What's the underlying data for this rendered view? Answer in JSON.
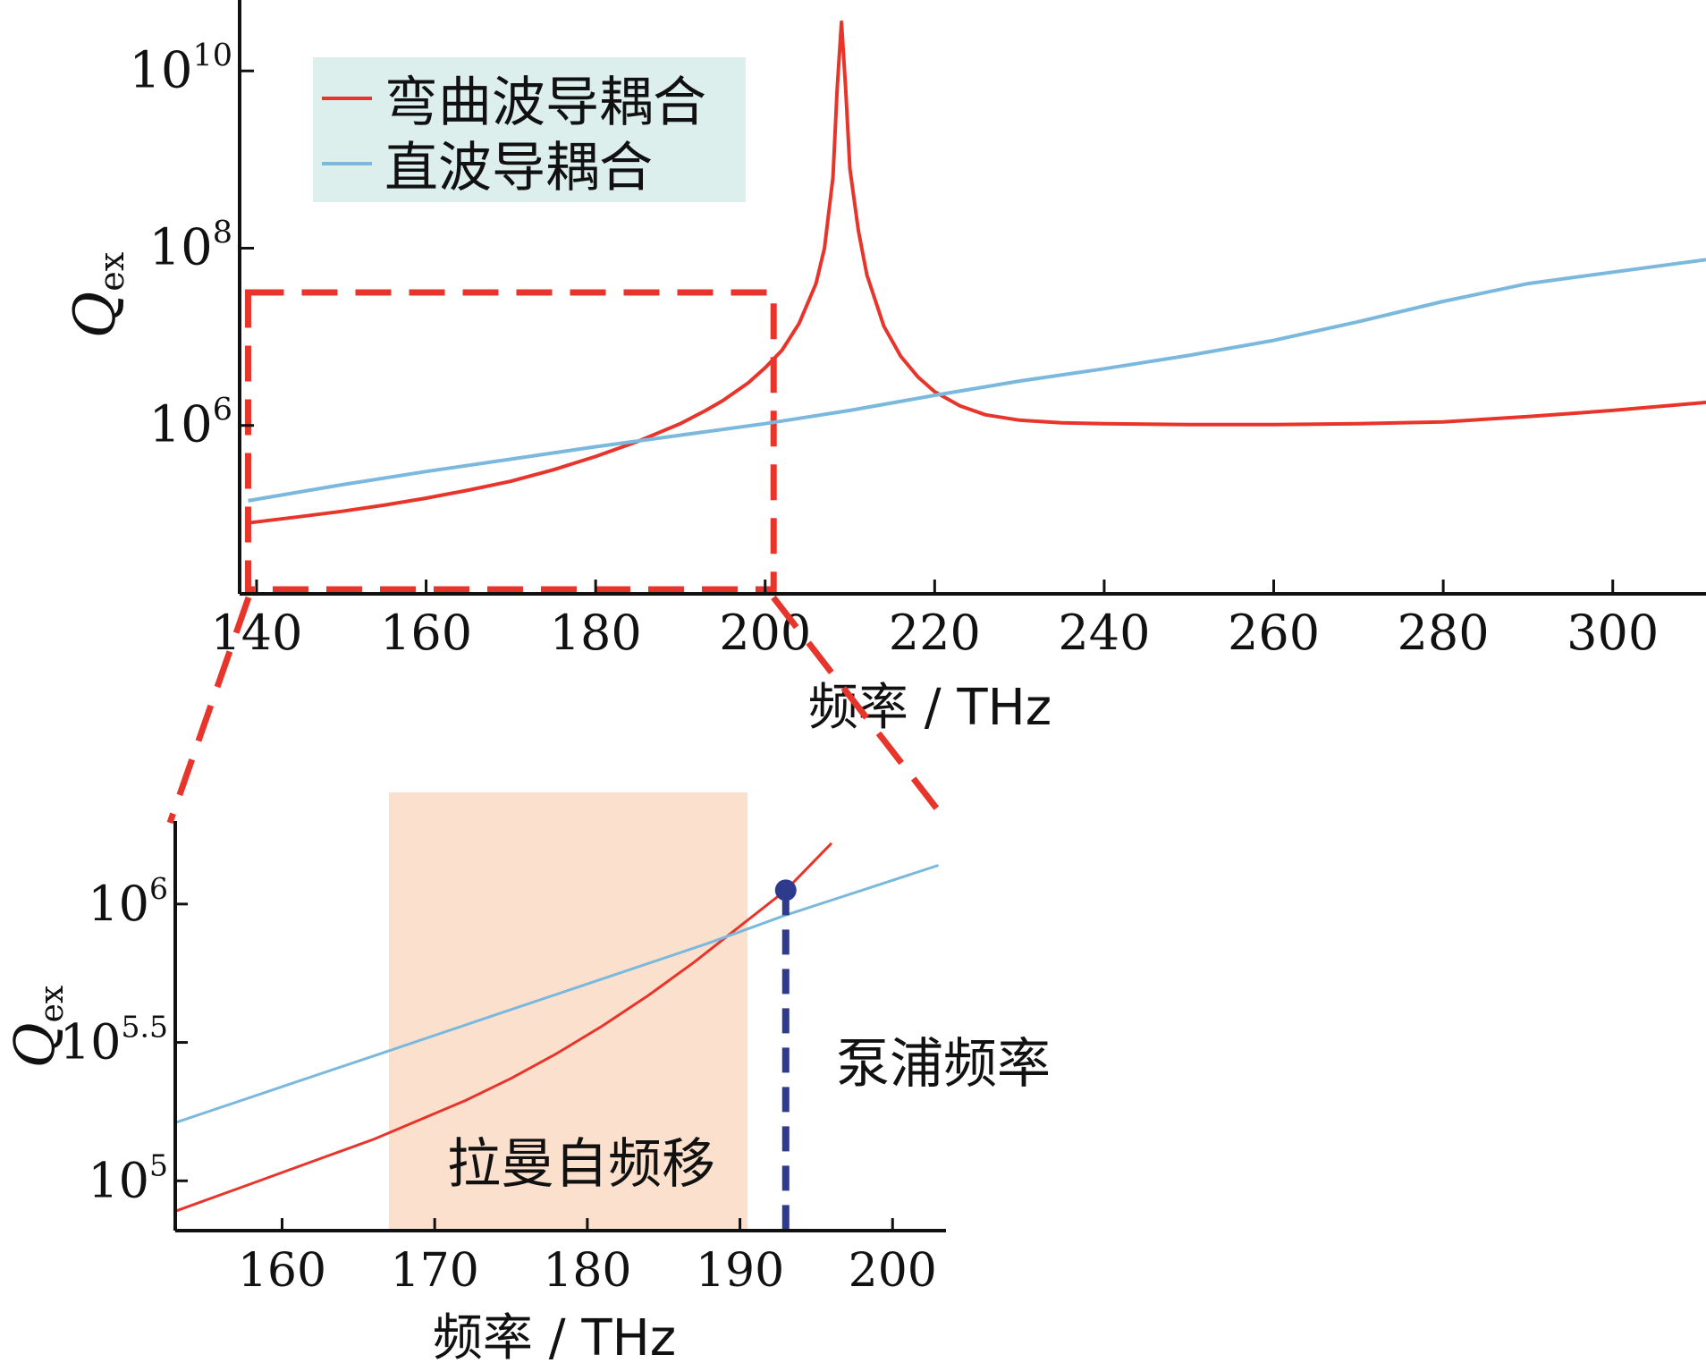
{
  "colors": {
    "bent": "#e8352b",
    "straight": "#7ab9dd",
    "legend_bg": "#dcefec",
    "zoom_box": "#e8352b",
    "raman_band": "#fbe0cd",
    "pump": "#2e3a8c"
  },
  "chart_data": [
    {
      "type": "line",
      "xlabel": "频率 / THz",
      "ylabel": "Q",
      "ylabel_sub": "ex",
      "x_range": [
        138,
        311
      ],
      "y_log_range": [
        4.1,
        10.8
      ],
      "x_ticks": [
        140,
        160,
        180,
        200,
        220,
        240,
        260,
        280,
        300
      ],
      "x_tick_labels": [
        "140",
        "160",
        "180",
        "200",
        "220",
        "240",
        "260",
        "280",
        "300"
      ],
      "y_ticks": [
        {
          "base": "10",
          "exp": "6",
          "log": 6
        },
        {
          "base": "10",
          "exp": "8",
          "log": 8
        },
        {
          "base": "10",
          "exp": "10",
          "log": 10
        }
      ],
      "legend": {
        "position": "top-left"
      },
      "series": [
        {
          "name": "弯曲波导耦合",
          "color_key": "bent",
          "log_y": true,
          "x": [
            139,
            145,
            150,
            155,
            160,
            165,
            170,
            175,
            180,
            185,
            190,
            193,
            195,
            198,
            200,
            202,
            204,
            206,
            207,
            208,
            208.5,
            209,
            209.5,
            210,
            211,
            212,
            214,
            216,
            218,
            220,
            223,
            226,
            230,
            235,
            240,
            250,
            260,
            270,
            280,
            290,
            300,
            311
          ],
          "y": [
            4.9,
            4.97,
            5.03,
            5.1,
            5.18,
            5.27,
            5.37,
            5.5,
            5.65,
            5.82,
            6.02,
            6.17,
            6.28,
            6.48,
            6.65,
            6.85,
            7.15,
            7.6,
            8.0,
            8.8,
            9.8,
            10.55,
            9.8,
            8.9,
            8.2,
            7.7,
            7.12,
            6.78,
            6.55,
            6.38,
            6.22,
            6.12,
            6.06,
            6.03,
            6.02,
            6.01,
            6.01,
            6.02,
            6.04,
            6.1,
            6.17,
            6.26
          ]
        },
        {
          "name": "直波导耦合",
          "color_key": "straight",
          "log_y": true,
          "x": [
            139,
            150,
            160,
            170,
            180,
            190,
            200,
            210,
            220,
            230,
            240,
            250,
            260,
            270,
            280,
            290,
            300,
            311
          ],
          "y": [
            5.15,
            5.33,
            5.48,
            5.62,
            5.76,
            5.89,
            6.02,
            6.17,
            6.34,
            6.5,
            6.64,
            6.79,
            6.96,
            7.17,
            7.4,
            7.6,
            7.73,
            7.87
          ]
        }
      ],
      "zoom_box": {
        "x": [
          139,
          201
        ],
        "y_log": [
          4.15,
          7.5
        ]
      }
    },
    {
      "type": "line",
      "xlabel": "频率 / THz",
      "ylabel": "Q",
      "ylabel_sub": "ex",
      "x_range": [
        153,
        203.5
      ],
      "y_log_range": [
        4.82,
        6.3
      ],
      "x_ticks": [
        160,
        170,
        180,
        190,
        200
      ],
      "x_tick_labels": [
        "160",
        "170",
        "180",
        "190",
        "200"
      ],
      "y_ticks": [
        {
          "base": "10",
          "exp": "5",
          "log": 5
        },
        {
          "base": "10",
          "exp": "5.5",
          "log": 5.5
        },
        {
          "base": "10",
          "exp": "6",
          "log": 6
        }
      ],
      "series": [
        {
          "name": "",
          "color_key": "bent",
          "log_y": true,
          "x": [
            153,
            157,
            160,
            163,
            166,
            169,
            172,
            175,
            178,
            181,
            184,
            187,
            190,
            193,
            196
          ],
          "y": [
            4.89,
            4.97,
            5.03,
            5.09,
            5.15,
            5.22,
            5.29,
            5.37,
            5.46,
            5.56,
            5.67,
            5.79,
            5.92,
            6.05,
            6.22
          ]
        },
        {
          "name": "",
          "color_key": "straight",
          "log_y": true,
          "x": [
            153,
            160,
            167,
            174,
            181,
            188,
            193,
            198,
            203
          ],
          "y": [
            5.21,
            5.34,
            5.47,
            5.6,
            5.73,
            5.86,
            5.96,
            6.05,
            6.14
          ]
        }
      ],
      "annotations": {
        "raman_band": {
          "x": [
            167,
            190.5
          ],
          "label": "拉曼自频移"
        },
        "pump": {
          "x": 193,
          "y_log": 6.05,
          "label": "泵浦频率"
        }
      }
    }
  ]
}
